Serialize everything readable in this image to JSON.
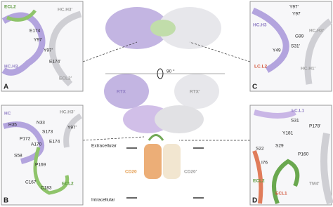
{
  "panels": [
    {
      "letter": "A",
      "labels": [
        "ECL2",
        "HC.H3′",
        "E174",
        "Y97",
        "Y97′",
        "E174′",
        "HC.H3",
        "ECL2′"
      ]
    },
    {
      "letter": "B",
      "labels": [
        "HC",
        "HC.H3′",
        "H35",
        "N33",
        "S173",
        "Y97′",
        "P172",
        "E174",
        "A170",
        "S58",
        "P169",
        "C167",
        "C183",
        "ECL2"
      ]
    },
    {
      "letter": "C",
      "labels": [
        "HC.H3",
        "Y97′",
        "Y97",
        "HC.H3′",
        "G99",
        "Y49",
        "S31′",
        "LC.L2",
        "HC.H1′"
      ]
    },
    {
      "letter": "D",
      "labels": [
        "LC.L1",
        "S31",
        "P178′",
        "Y181",
        "S29",
        "S22",
        "I76",
        "P160",
        "ECL2",
        "ECL1",
        "TM4′"
      ]
    }
  ],
  "center": {
    "labels": [
      "RTX",
      "RTX′",
      "90 °",
      "Extracellular",
      "CD20",
      "CD20′",
      "Intracellular"
    ]
  }
}
